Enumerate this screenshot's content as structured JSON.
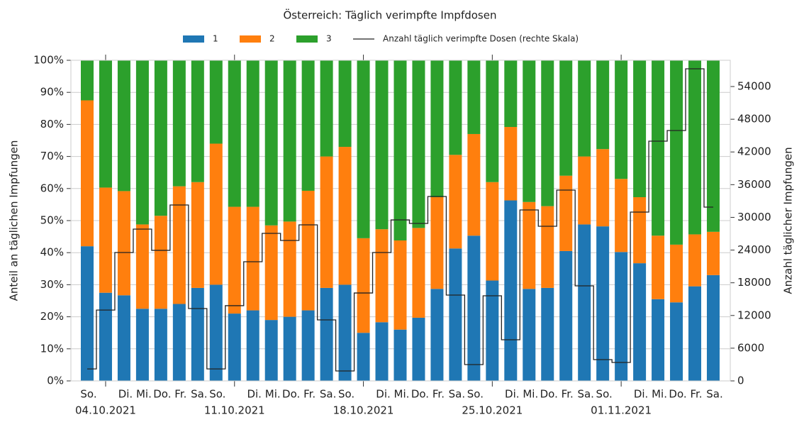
{
  "chart_data": {
    "type": "stacked_bar_line",
    "title": "Österreich: Täglich verimpfte Impfdosen",
    "ylabel": "Anteil an täglichen Impfungen",
    "y2label": "Anzahl täglicher Impfungen",
    "categories": [
      "So.",
      "04.10.2021",
      "Di.",
      "Mi.",
      "Do.",
      "Fr.",
      "Sa.",
      "So.",
      "11.10.2021",
      "Di.",
      "Mi.",
      "Do.",
      "Fr.",
      "Sa.",
      "So.",
      "18.10.2021",
      "Di.",
      "Mi.",
      "Do.",
      "Fr.",
      "Sa.",
      "So.",
      "25.10.2021",
      "Di.",
      "Mi.",
      "Do.",
      "Fr.",
      "Sa.",
      "So.",
      "01.11.2021",
      "Di.",
      "Mi.",
      "Do.",
      "Fr.",
      "Sa."
    ],
    "series": [
      {
        "name": "1",
        "color": "#1f77b4",
        "values": [
          42,
          27.5,
          26.7,
          22.5,
          22.5,
          24,
          29,
          30,
          21,
          22,
          19,
          20,
          22,
          29,
          30,
          15,
          18.3,
          16,
          19.7,
          28.7,
          41.3,
          45.3,
          31.3,
          56.3,
          28.7,
          29,
          40.5,
          48.8,
          48.2,
          40.2,
          36.7,
          25.5,
          24.5,
          29.5,
          33
        ]
      },
      {
        "name": "2",
        "color": "#ff7f0e",
        "values": [
          45.5,
          32.8,
          32.5,
          26.3,
          29,
          36.7,
          33,
          44,
          33.3,
          32.3,
          29.5,
          29.7,
          37.3,
          41,
          43,
          29.5,
          29,
          27.8,
          28,
          28.6,
          29.2,
          31.7,
          30.7,
          22.9,
          27.1,
          25.5,
          23.5,
          21.2,
          24.1,
          22.8,
          20.6,
          19.8,
          18,
          16.2,
          13.5
        ]
      },
      {
        "name": "3",
        "color": "#2ca02c",
        "values": [
          12.5,
          39.7,
          40.8,
          51.2,
          48.5,
          39.3,
          38,
          26,
          45.7,
          45.7,
          51.5,
          50.3,
          40.7,
          30,
          27,
          55.5,
          52.7,
          56.2,
          52.3,
          42.7,
          29.5,
          23,
          38,
          20.8,
          44.2,
          45.5,
          36,
          30,
          27.7,
          37,
          42.7,
          54.7,
          57.5,
          54.3,
          53.5
        ]
      },
      {
        "name": "Anzahl täglich verimpfte Dosen (rechte Skala)",
        "color": "#222222",
        "axis": "y2",
        "values": [
          2200,
          13000,
          23550,
          27850,
          23950,
          32270,
          13270,
          2200,
          13800,
          21860,
          27070,
          25760,
          28630,
          11190,
          1820,
          16130,
          23550,
          29540,
          28890,
          33830,
          15740,
          2990,
          15610,
          7550,
          31360,
          28370,
          35000,
          17440,
          3900,
          3380,
          30970,
          43980,
          45930,
          57250,
          31880
        ]
      }
    ],
    "ylim": [
      0,
      100
    ],
    "yticks": [
      {
        "value": 0,
        "label": "0%"
      },
      {
        "value": 10,
        "label": "10%"
      },
      {
        "value": 20,
        "label": "20%"
      },
      {
        "value": 30,
        "label": "30%"
      },
      {
        "value": 40,
        "label": "40%"
      },
      {
        "value": 50,
        "label": "50%"
      },
      {
        "value": 60,
        "label": "60%"
      },
      {
        "value": 70,
        "label": "70%"
      },
      {
        "value": 80,
        "label": "80%"
      },
      {
        "value": 90,
        "label": "90%"
      },
      {
        "value": 100,
        "label": "100%"
      }
    ],
    "y2lim": [
      0,
      58815
    ],
    "y2ticks": [
      0,
      6000,
      12000,
      18000,
      24000,
      30000,
      36000,
      42000,
      48000,
      54000
    ],
    "grid": true
  }
}
